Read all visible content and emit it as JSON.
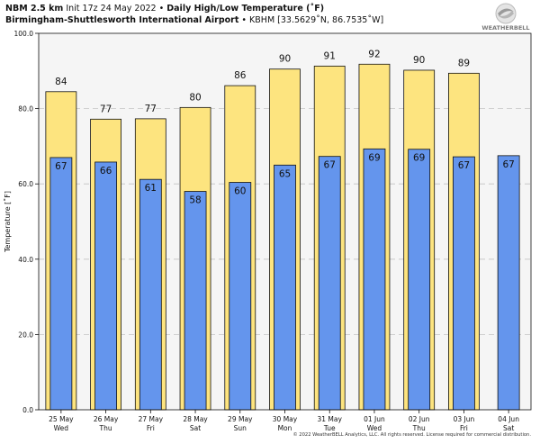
{
  "header": {
    "model": "NBM 2.5 km",
    "init": "Init 17z 24 May 2022",
    "sep": "•",
    "product": "Daily High/Low Temperature (˚F)",
    "station": "Birmingham-Shuttlesworth International Airport",
    "coords": "KBHM [33.5629˚N, 86.7535˚W]"
  },
  "logo_text": "WEATHERBELL",
  "copyright": "© 2022 WeatherBELL Analytics, LLC. All rights reserved. License required for commercial distribution.",
  "colors": {
    "high": "#fde47f",
    "low": "#6495ed",
    "plot_bg": "#f5f5f5",
    "outline": "#111111"
  },
  "chart_data": {
    "type": "bar",
    "ylabel": "Temperature [˚F]",
    "ylim": [
      0,
      100
    ],
    "yticks": [
      "0.0",
      "20.0",
      "40.0",
      "60.0",
      "80.0",
      "100.0"
    ],
    "grid": true,
    "categories": [
      {
        "date": "25 May",
        "day": "Wed"
      },
      {
        "date": "26 May",
        "day": "Thu"
      },
      {
        "date": "27 May",
        "day": "Fri"
      },
      {
        "date": "28 May",
        "day": "Sat"
      },
      {
        "date": "29 May",
        "day": "Sun"
      },
      {
        "date": "30 May",
        "day": "Mon"
      },
      {
        "date": "31 May",
        "day": "Tue"
      },
      {
        "date": "01 Jun",
        "day": "Wed"
      },
      {
        "date": "02 Jun",
        "day": "Thu"
      },
      {
        "date": "03 Jun",
        "day": "Fri"
      },
      {
        "date": "04 Jun",
        "day": "Sat"
      }
    ],
    "series": [
      {
        "key": "high",
        "values": [
          84.5,
          77.2,
          77.3,
          80.3,
          86.1,
          90.5,
          91.3,
          91.8,
          90.2,
          89.4,
          null
        ],
        "labels": [
          "84",
          "77",
          "77",
          "80",
          "86",
          "90",
          "91",
          "92",
          "90",
          "89",
          ""
        ]
      },
      {
        "key": "low",
        "values": [
          67.0,
          65.8,
          61.2,
          58.0,
          60.4,
          65.0,
          67.3,
          69.3,
          69.2,
          67.2,
          67.5
        ],
        "labels": [
          "67",
          "66",
          "61",
          "58",
          "60",
          "65",
          "67",
          "69",
          "69",
          "67",
          "67"
        ]
      }
    ]
  }
}
